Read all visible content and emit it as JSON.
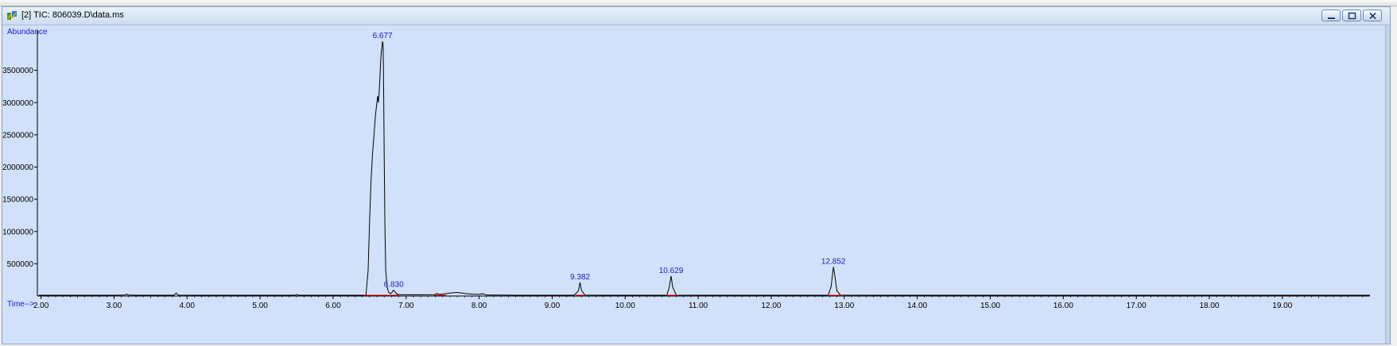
{
  "window": {
    "title": "[2] TIC: 806039.D\\data.ms",
    "controls": [
      "minimize",
      "maximize",
      "close"
    ]
  },
  "chart_data": {
    "type": "line",
    "ylabel": "Abundance",
    "xlabel": "Time-->",
    "xlim": [
      1.95,
      20.2
    ],
    "ylim": [
      0,
      4000000
    ],
    "x_ticks": [
      "2.00",
      "3.00",
      "4.00",
      "5.00",
      "6.00",
      "7.00",
      "8.00",
      "9.00",
      "10.00",
      "11.00",
      "12.00",
      "13.00",
      "14.00",
      "15.00",
      "16.00",
      "17.00",
      "18.00",
      "19.00"
    ],
    "y_ticks": [
      "500000",
      "1000000",
      "1500000",
      "2000000",
      "2500000",
      "3000000",
      "3500000"
    ],
    "grid": false,
    "line_color": "#000000",
    "baseline_color": "#ff0000",
    "label_color": "#1a1acc",
    "peaks": [
      {
        "label": "6.677",
        "rt": 6.677,
        "abundance": 3950000
      },
      {
        "label": "6.830",
        "rt": 6.83,
        "abundance": 90000
      },
      {
        "label": "9.382",
        "rt": 9.382,
        "abundance": 210000
      },
      {
        "label": "10.629",
        "rt": 10.629,
        "abundance": 310000
      },
      {
        "label": "12.852",
        "rt": 12.852,
        "abundance": 450000
      }
    ],
    "series": [
      {
        "x": [
          1.97,
          3.0,
          3.15,
          3.17,
          3.19,
          3.3,
          3.82,
          3.85,
          3.88,
          4.5,
          5.48,
          5.5,
          5.52,
          6.4,
          6.45,
          6.48,
          6.5,
          6.52,
          6.54,
          6.56,
          6.58,
          6.6,
          6.61,
          6.62,
          6.63,
          6.64,
          6.65,
          6.66,
          6.67,
          6.677,
          6.685,
          6.69,
          6.7,
          6.71,
          6.72,
          6.74,
          6.76,
          6.78,
          6.8,
          6.82,
          6.83,
          6.845,
          6.87,
          6.9,
          6.95,
          7.0,
          7.2,
          7.4,
          7.42,
          7.45,
          7.5,
          7.6,
          7.7,
          7.8,
          7.9,
          8.0,
          8.05,
          8.1,
          8.5,
          9.3,
          9.36,
          9.382,
          9.4,
          9.45,
          10.0,
          10.57,
          10.6,
          10.629,
          10.65,
          10.7,
          11.5,
          12.78,
          12.82,
          12.852,
          12.87,
          12.9,
          12.95,
          13.5,
          20.2
        ],
        "y": [
          12000,
          12000,
          15000,
          30000,
          15000,
          12000,
          12000,
          45000,
          13000,
          12000,
          12000,
          22000,
          12000,
          12000,
          15000,
          400000,
          1200000,
          1800000,
          2200000,
          2500000,
          2800000,
          3000000,
          3100000,
          3000000,
          3150000,
          3350000,
          3600000,
          3780000,
          3880000,
          3950000,
          3900000,
          3500000,
          2200000,
          1100000,
          400000,
          140000,
          60000,
          40000,
          45000,
          80000,
          90000,
          70000,
          35000,
          22000,
          20000,
          20000,
          20000,
          22000,
          40000,
          25000,
          30000,
          45000,
          55000,
          40000,
          30000,
          25000,
          35000,
          15000,
          12000,
          12000,
          80000,
          210000,
          90000,
          13000,
          12000,
          12000,
          120000,
          310000,
          140000,
          13000,
          12000,
          12000,
          150000,
          450000,
          330000,
          80000,
          14000,
          12000,
          12000
        ]
      }
    ]
  }
}
